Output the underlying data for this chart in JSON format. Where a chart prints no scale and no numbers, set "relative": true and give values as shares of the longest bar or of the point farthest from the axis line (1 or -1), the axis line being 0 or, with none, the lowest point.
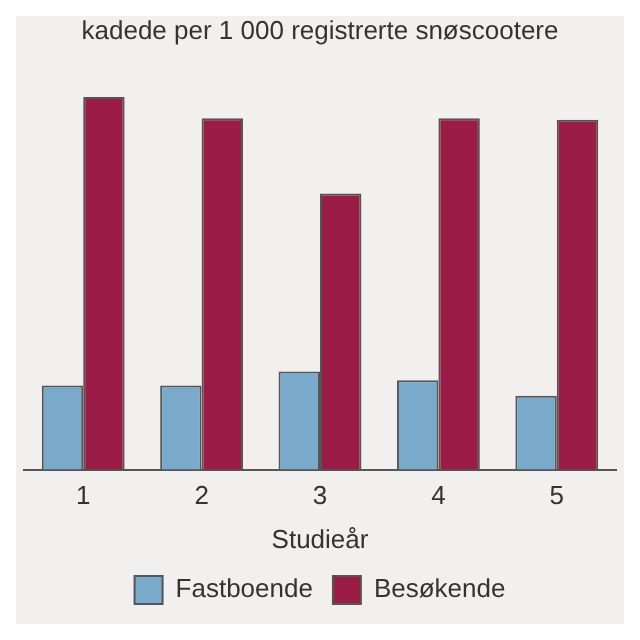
{
  "chart_data": {
    "type": "bar",
    "title": "kadede per 1 000 registrerte snøscootere",
    "xlabel": "Studieår",
    "categories": [
      "1",
      "2",
      "3",
      "4",
      "5"
    ],
    "relative": true,
    "legend": "bottom",
    "grid": false,
    "series": [
      {
        "name": "Fastboende",
        "color": "#7aaacb",
        "values": [
          0.226,
          0.226,
          0.263,
          0.24,
          0.198
        ]
      },
      {
        "name": "Besøkende",
        "color": "#9c1c48",
        "values": [
          1,
          0.943,
          0.741,
          0.943,
          0.939
        ]
      }
    ]
  }
}
